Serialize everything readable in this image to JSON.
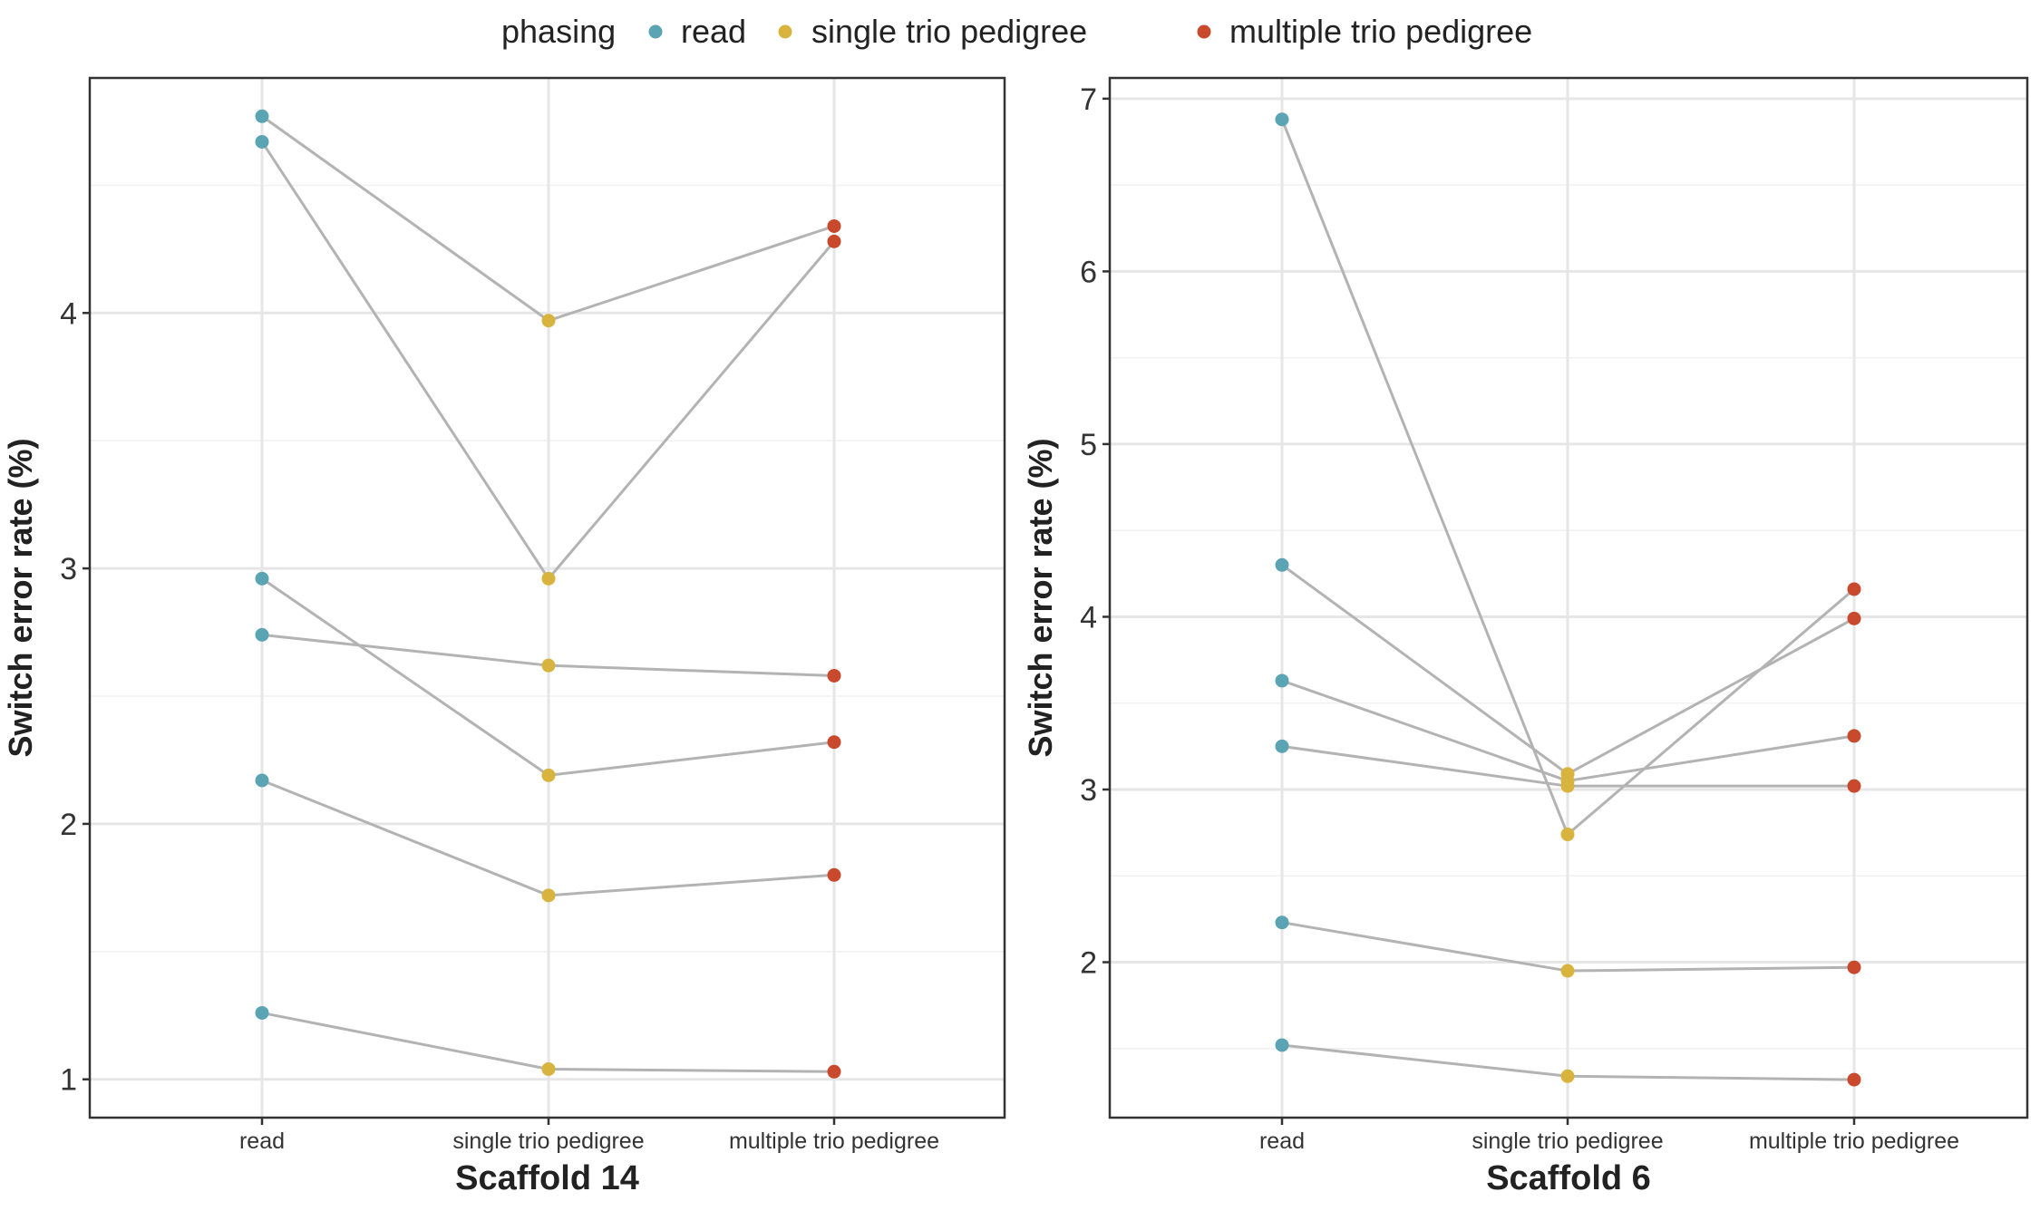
{
  "legend": {
    "title": "phasing",
    "items": [
      {
        "label": "read",
        "color": "#5ba4b4"
      },
      {
        "label": "single trio pedigree",
        "color": "#d8b33e"
      },
      {
        "label": "multiple trio pedigree",
        "color": "#c9492d"
      }
    ]
  },
  "chart_data": [
    {
      "type": "line",
      "panel": "Scaffold 14",
      "xlabel": "Scaffold 14",
      "ylabel": "Switch error rate (%)",
      "categories": [
        "read",
        "single trio pedigree",
        "multiple trio pedigree"
      ],
      "ylim": [
        0.85,
        4.92
      ],
      "yticks": [
        1,
        2,
        3,
        4
      ],
      "grid": true,
      "series": [
        {
          "values": [
            4.77,
            3.97,
            4.34
          ]
        },
        {
          "values": [
            4.67,
            2.96,
            4.28
          ]
        },
        {
          "values": [
            2.96,
            2.19,
            2.32
          ]
        },
        {
          "values": [
            2.74,
            2.62,
            2.58
          ]
        },
        {
          "values": [
            2.17,
            1.72,
            1.8
          ]
        },
        {
          "values": [
            1.26,
            1.04,
            1.03
          ]
        }
      ]
    },
    {
      "type": "line",
      "panel": "Scaffold 6",
      "xlabel": "Scaffold 6",
      "ylabel": "Switch error rate (%)",
      "categories": [
        "read",
        "single trio pedigree",
        "multiple trio pedigree"
      ],
      "ylim": [
        1.1,
        7.12
      ],
      "yticks": [
        2,
        3,
        4,
        5,
        6,
        7
      ],
      "grid": true,
      "series": [
        {
          "values": [
            6.88,
            2.74,
            4.16
          ]
        },
        {
          "values": [
            4.3,
            3.09,
            3.99
          ]
        },
        {
          "values": [
            3.63,
            3.05,
            3.31
          ]
        },
        {
          "values": [
            3.25,
            3.02,
            3.02
          ]
        },
        {
          "values": [
            2.23,
            1.95,
            1.97
          ]
        },
        {
          "values": [
            1.52,
            1.34,
            1.32
          ]
        }
      ]
    }
  ]
}
